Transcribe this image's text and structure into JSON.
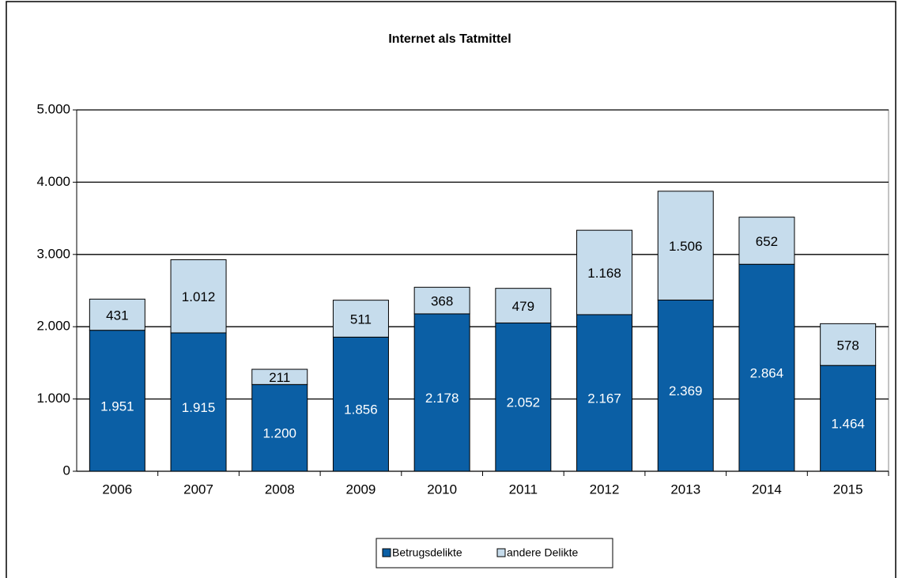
{
  "chart_data": {
    "type": "stacked_bar",
    "title": "Internet als Tatmittel",
    "categories": [
      "2006",
      "2007",
      "2008",
      "2009",
      "2010",
      "2011",
      "2012",
      "2013",
      "2014",
      "2015"
    ],
    "series": [
      {
        "name": "Betrugsdelikte",
        "color": "#0b5fa5",
        "values": [
          1951,
          1915,
          1200,
          1856,
          2178,
          2052,
          2167,
          2369,
          2864,
          1464
        ],
        "value_labels": [
          "1.951",
          "1.915",
          "1.200",
          "1.856",
          "2.178",
          "2.052",
          "2.167",
          "2.369",
          "2.864",
          "1.464"
        ]
      },
      {
        "name": "andere Delikte",
        "color": "#c6dcec",
        "values": [
          431,
          1012,
          211,
          511,
          368,
          479,
          1168,
          1506,
          652,
          578
        ],
        "value_labels": [
          "431",
          "1.012",
          "211",
          "511",
          "368",
          "479",
          "1.168",
          "1.506",
          "652",
          "578"
        ]
      }
    ],
    "ylim": [
      0,
      5000
    ],
    "yticks": [
      0,
      {
        "value": 1000,
        "label": "1.000"
      },
      {
        "value": 2000,
        "label": "2.000"
      },
      {
        "value": 3000,
        "label": "3.000"
      },
      {
        "value": 4000,
        "label": "4.000"
      },
      {
        "value": 5000,
        "label": "5.000"
      }
    ],
    "grid": true,
    "legend": "bottom"
  }
}
